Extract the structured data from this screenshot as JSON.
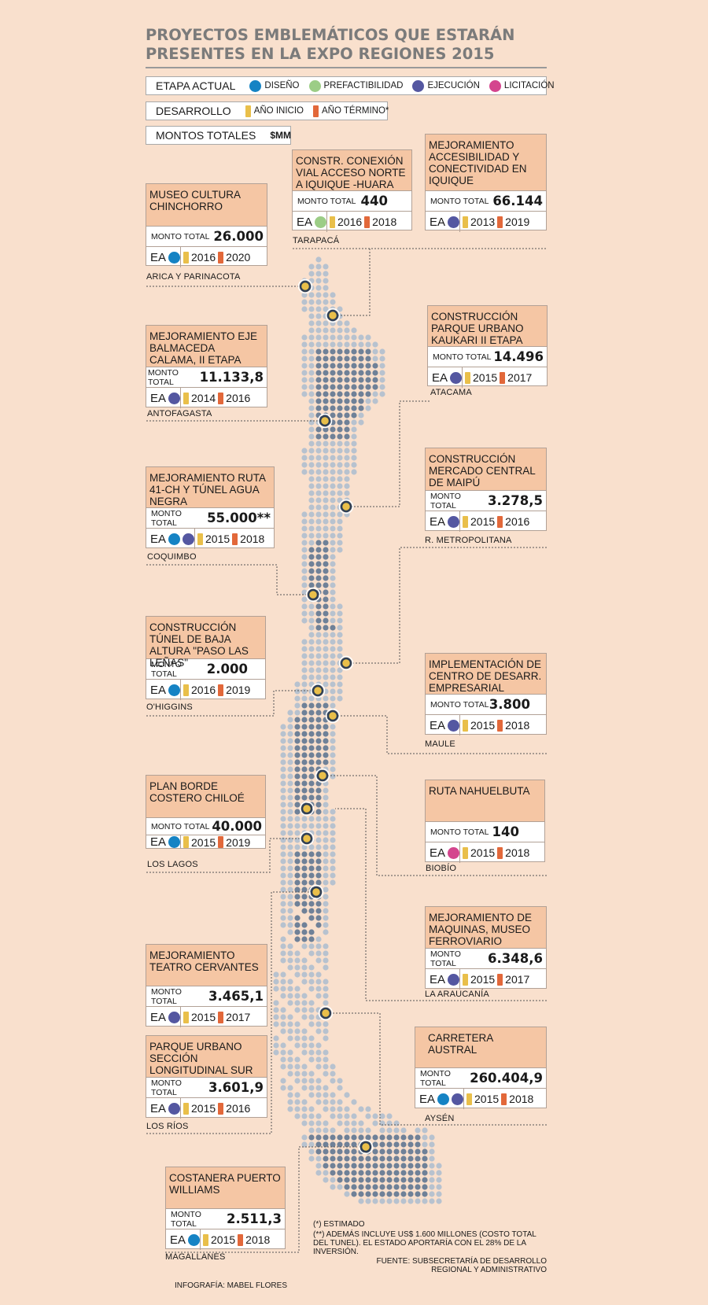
{
  "title": {
    "line1": "PROYECTOS EMBLEMÁTICOS QUE ESTARÁN",
    "line2": "PRESENTES EN LA EXPO REGIONES 2015"
  },
  "legend": {
    "etapa_label": "ETAPA ACTUAL",
    "stages": [
      {
        "label": "DISEÑO",
        "color": "#1583c4"
      },
      {
        "label": "PREFACTIBILIDAD",
        "color": "#9ccd86"
      },
      {
        "label": "EJECUCIÓN",
        "color": "#5457a1"
      },
      {
        "label": "LICITACIÓN",
        "color": "#d4458e"
      }
    ],
    "desarrollo_label": "DESARROLLO",
    "inicio_label": "AÑO INICIO",
    "termino_label": "AÑO TÉRMINO*",
    "montos_label": "MONTOS TOTALES",
    "montos_unit": "$MM"
  },
  "common": {
    "monto_label": "MONTO TOTAL",
    "ea_label": "EA"
  },
  "projects": [
    {
      "title": "MUSEO CULTURA CHINCHORRO",
      "monto": "26.000",
      "stages": [
        "#1583c4"
      ],
      "inicio": "2016",
      "termino": "2020",
      "region": "ARICA Y PARINACOTA"
    },
    {
      "title": "CONSTR. CONEXIÓN VIAL ACCESO NORTE A IQUIQUE -HUARA",
      "monto": "440",
      "stages": [
        "#9ccd86"
      ],
      "inicio": "2016",
      "termino": "2018",
      "region": "TARAPACÁ"
    },
    {
      "title": "MEJORAMIENTO ACCESIBILIDAD Y CONECTIVIDAD EN IQUIQUE",
      "monto": "66.144",
      "stages": [
        "#5457a1"
      ],
      "inicio": "2013",
      "termino": "2019",
      "region": ""
    },
    {
      "title": "MEJORAMIENTO EJE BALMACEDA CALAMA, II ETAPA",
      "monto": "11.133,8",
      "stages": [
        "#5457a1"
      ],
      "inicio": "2014",
      "termino": "2016",
      "region": "ANTOFAGASTA"
    },
    {
      "title": "CONSTRUCCIÓN PARQUE URBANO KAUKARI II ETAPA",
      "monto": "14.496",
      "stages": [
        "#5457a1"
      ],
      "inicio": "2015",
      "termino": "2017",
      "region": "ATACAMA"
    },
    {
      "title": "MEJORAMIENTO RUTA 41-CH Y TÚNEL AGUA NEGRA",
      "monto": "55.000**",
      "stages": [
        "#1583c4",
        "#5457a1"
      ],
      "inicio": "2015",
      "termino": "2018",
      "region": "COQUIMBO"
    },
    {
      "title": "CONSTRUCCIÓN MERCADO CENTRAL DE MAIPÚ",
      "monto": "3.278,5",
      "stages": [
        "#5457a1"
      ],
      "inicio": "2015",
      "termino": "2016",
      "region": "R. METROPOLITANA"
    },
    {
      "title": "CONSTRUCCIÓN TÚNEL DE BAJA ALTURA \"PASO LAS LEÑAS\"",
      "monto": "2.000",
      "stages": [
        "#1583c4"
      ],
      "inicio": "2016",
      "termino": "2019",
      "region": "O'HIGGINS"
    },
    {
      "title": "IMPLEMENTACIÓN DE CENTRO DE DESARR. EMPRESARIAL",
      "monto": "3.800",
      "stages": [
        "#5457a1"
      ],
      "inicio": "2015",
      "termino": "2018",
      "region": "MAULE"
    },
    {
      "title": "PLAN BORDE COSTERO CHILOÉ",
      "monto": "40.000",
      "stages": [
        "#1583c4"
      ],
      "inicio": "2015",
      "termino": "2019",
      "region": "LOS LAGOS"
    },
    {
      "title": "RUTA NAHUELBUTA",
      "monto": "140",
      "stages": [
        "#d4458e"
      ],
      "inicio": "2015",
      "termino": "2018",
      "region": "BIOBÍO"
    },
    {
      "title": "MEJORAMIENTO DE MAQUINAS, MUSEO FERROVIARIO",
      "monto": "6.348,6",
      "stages": [
        "#5457a1"
      ],
      "inicio": "2015",
      "termino": "2017",
      "region": "LA ARAUCANÍA"
    },
    {
      "title": "MEJORAMIENTO TEATRO CERVANTES",
      "monto": "3.465,1",
      "stages": [
        "#5457a1"
      ],
      "inicio": "2015",
      "termino": "2017",
      "region": ""
    },
    {
      "title": "CARRETERA AUSTRAL",
      "monto": "260.404,9",
      "stages": [
        "#1583c4",
        "#5457a1"
      ],
      "inicio": "2015",
      "termino": "2018",
      "region": "AYSÉN"
    },
    {
      "title": "PARQUE URBANO SECCIÓN LONGITUDINAL SUR",
      "monto": "3.601,9",
      "stages": [
        "#5457a1"
      ],
      "inicio": "2015",
      "termino": "2016",
      "region": "LOS RÍOS"
    },
    {
      "title": "COSTANERA PUERTO WILLIAMS",
      "monto": "2.511,3",
      "stages": [
        "#1583c4"
      ],
      "inicio": "2015",
      "termino": "2018",
      "region": "MAGALLANES"
    }
  ],
  "notes": {
    "estimado": "(*) ESTIMADO",
    "adicional": "(**) ADEMÁS INCLUYE US$ 1.600 MILLONES (COSTO TOTAL DEL TUNEL). EL ESTADO APORTARÍA CON EL 28% DE LA INVERSIÓN.",
    "fuente1": "FUENTE: SUBSECRETARÍA DE DESARROLLO",
    "fuente2": "REGIONAL Y ADMINISTRATIVO",
    "credito": "INFOGRAFÍA: MABEL FLORES"
  },
  "colors": {
    "background": "#f9e0cd",
    "card_header": "#f5c6a4",
    "map_light": "#b7c2cf",
    "map_dark": "#6f8198",
    "marker": "#e9bf4a",
    "year_start": "#e9bf4a",
    "year_end": "#e2683a"
  }
}
